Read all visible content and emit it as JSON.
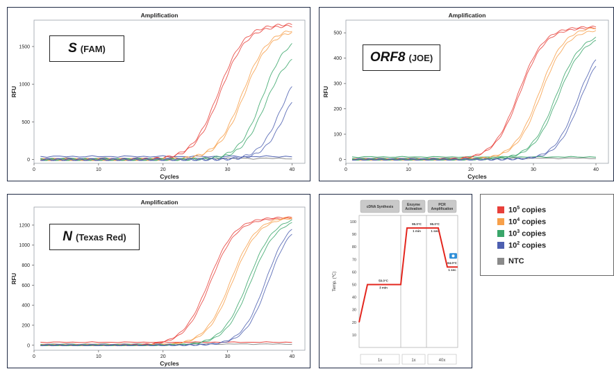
{
  "colors": {
    "c105": "#e8403a",
    "c104": "#f7a04a",
    "c103": "#3aa66a",
    "c102": "#4d5fb0",
    "ntc": "#8a8a8a"
  },
  "charts": [
    {
      "id": "S",
      "title": "Amplification",
      "gene": "S",
      "dye": "(FAM)",
      "xlabel": "Cycles",
      "ylabel": "RFU",
      "xlim": [
        0,
        42
      ],
      "ylim": [
        -50,
        1850
      ],
      "xticks": [
        0,
        10,
        20,
        30,
        40
      ],
      "yticks": [
        0,
        500,
        1000,
        1500
      ],
      "curves": [
        {
          "group": "c105",
          "mid": 28.6,
          "k": 0.5,
          "top": 1800
        },
        {
          "group": "c105",
          "mid": 28.9,
          "k": 0.5,
          "top": 1780
        },
        {
          "group": "c104",
          "mid": 32.3,
          "k": 0.5,
          "top": 1750
        },
        {
          "group": "c104",
          "mid": 32.6,
          "k": 0.5,
          "top": 1730
        },
        {
          "group": "c103",
          "mid": 35.4,
          "k": 0.55,
          "top": 1650
        },
        {
          "group": "c103",
          "mid": 35.8,
          "k": 0.55,
          "top": 1450
        },
        {
          "group": "c102",
          "mid": 38.2,
          "k": 0.6,
          "top": 1300
        },
        {
          "group": "c102",
          "mid": 38.8,
          "k": 0.6,
          "top": 1150
        }
      ],
      "baselines": [
        {
          "group": "c102",
          "y": 40
        },
        {
          "group": "ntc",
          "y": 15
        }
      ]
    },
    {
      "id": "ORF8",
      "title": "Amplification",
      "gene": "ORF8",
      "dye": "(JOE)",
      "xlabel": "Cycles",
      "ylabel": "RFU",
      "xlim": [
        0,
        42
      ],
      "ylim": [
        -15,
        550
      ],
      "xticks": [
        0,
        10,
        20,
        30,
        40
      ],
      "yticks": [
        0,
        100,
        200,
        300,
        400,
        500
      ],
      "curves": [
        {
          "group": "c105",
          "mid": 27.6,
          "k": 0.5,
          "top": 525
        },
        {
          "group": "c105",
          "mid": 27.8,
          "k": 0.5,
          "top": 520
        },
        {
          "group": "c104",
          "mid": 30.9,
          "k": 0.5,
          "top": 525
        },
        {
          "group": "c104",
          "mid": 31.2,
          "k": 0.5,
          "top": 515
        },
        {
          "group": "c103",
          "mid": 33.6,
          "k": 0.5,
          "top": 500
        },
        {
          "group": "c103",
          "mid": 33.9,
          "k": 0.5,
          "top": 490
        },
        {
          "group": "c102",
          "mid": 37.0,
          "k": 0.55,
          "top": 470
        },
        {
          "group": "c102",
          "mid": 37.4,
          "k": 0.55,
          "top": 460
        }
      ],
      "baselines": [
        {
          "group": "c103",
          "y": 10
        },
        {
          "group": "ntc",
          "y": 5
        }
      ]
    },
    {
      "id": "N",
      "title": "Amplification",
      "gene": "N",
      "dye": "(Texas Red)",
      "xlabel": "Cycles",
      "ylabel": "RFU",
      "xlim": [
        0,
        42
      ],
      "ylim": [
        -50,
        1380
      ],
      "xticks": [
        0,
        10,
        20,
        30,
        40
      ],
      "yticks": [
        0,
        200,
        400,
        600,
        800,
        1000,
        1200
      ],
      "curves": [
        {
          "group": "c105",
          "mid": 27.1,
          "k": 0.5,
          "top": 1280
        },
        {
          "group": "c105",
          "mid": 27.4,
          "k": 0.5,
          "top": 1270
        },
        {
          "group": "c104",
          "mid": 30.5,
          "k": 0.5,
          "top": 1290
        },
        {
          "group": "c104",
          "mid": 30.8,
          "k": 0.5,
          "top": 1280
        },
        {
          "group": "c103",
          "mid": 33.2,
          "k": 0.5,
          "top": 1290
        },
        {
          "group": "c103",
          "mid": 33.6,
          "k": 0.5,
          "top": 1270
        },
        {
          "group": "c102",
          "mid": 35.9,
          "k": 0.55,
          "top": 1280
        },
        {
          "group": "c102",
          "mid": 36.3,
          "k": 0.55,
          "top": 1260
        }
      ],
      "baselines": [
        {
          "group": "c105",
          "y": 30
        },
        {
          "group": "ntc",
          "y": 12
        }
      ]
    }
  ],
  "profile": {
    "ylabel": "Temp. (℃)",
    "yticks": [
      10,
      20,
      30,
      40,
      50,
      60,
      70,
      80,
      90,
      100
    ],
    "stages": [
      {
        "name": "cDNA Synthesis",
        "cycles": "1x"
      },
      {
        "name": "Enzyme Activation",
        "cycles": "1x"
      },
      {
        "name": "PCR Amplification",
        "cycles": "40x"
      }
    ],
    "steps": [
      {
        "temp": "50.0°C",
        "time": "3 min",
        "value": 50
      },
      {
        "temp": "95.0°C",
        "time": "1 min",
        "value": 95
      },
      {
        "temp": "95.0°C",
        "time": "1 sec",
        "value": 95
      },
      {
        "temp": "64.0°C",
        "time": "1 sec",
        "value": 64
      }
    ],
    "start_value": 20
  },
  "legend": [
    {
      "group": "c105",
      "base": "10",
      "exp": "5",
      "suffix": " copies"
    },
    {
      "group": "c104",
      "base": "10",
      "exp": "4",
      "suffix": " copies"
    },
    {
      "group": "c103",
      "base": "10",
      "exp": "3",
      "suffix": " copies"
    },
    {
      "group": "c102",
      "base": "10",
      "exp": "2",
      "suffix": " copies"
    },
    {
      "group": "ntc",
      "base": "NTC",
      "exp": "",
      "suffix": ""
    }
  ]
}
